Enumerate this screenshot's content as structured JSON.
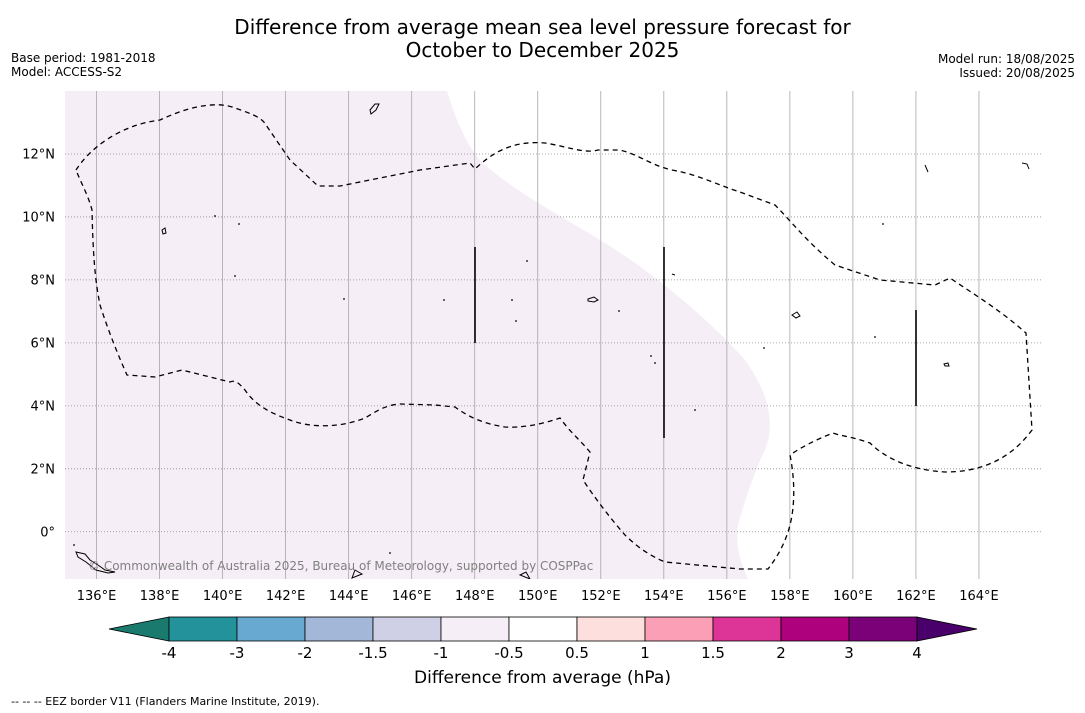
{
  "header": {
    "title_line1": "Difference from average mean sea level pressure forecast for",
    "title_line2": "October to December 2025",
    "base_period": "Base period: 1981-2018",
    "model": "Model: ACCESS-S2",
    "model_run": "Model run: 18/08/2025",
    "issued": "Issued: 20/08/2025"
  },
  "map": {
    "lon_range": [
      135,
      166
    ],
    "lat_range": [
      -1.5,
      14
    ],
    "lon_ticks": [
      "136°E",
      "138°E",
      "140°E",
      "142°E",
      "144°E",
      "146°E",
      "148°E",
      "150°E",
      "152°E",
      "154°E",
      "156°E",
      "158°E",
      "160°E",
      "162°E",
      "164°E"
    ],
    "lat_ticks": [
      "12°N",
      "10°N",
      "8°N",
      "6°N",
      "4°N",
      "2°N",
      "0°"
    ],
    "shade_color": "#f5eef6",
    "copyright": "© Commonwealth of Australia 2025, Bureau of Meteorology, supported by COSPPac"
  },
  "colorbar": {
    "title": "Difference from average (hPa)",
    "tick_labels": [
      "-4",
      "-3",
      "-2",
      "-1.5",
      "-1",
      "-0.5",
      "0.5",
      "1",
      "1.5",
      "2",
      "3",
      "4"
    ],
    "colors": [
      "#1a7a6e",
      "#23929a",
      "#67a9d0",
      "#a3b8d8",
      "#cfcfe6",
      "#f5eef6",
      "#ffffff",
      "#fde0dd",
      "#fa9fb5",
      "#dd3497",
      "#ae017e",
      "#7a0177",
      "#49006a"
    ]
  },
  "footer": {
    "legend_note": "--  --  -- EEZ border V11 (Flanders Marine Institute, 2019)."
  }
}
